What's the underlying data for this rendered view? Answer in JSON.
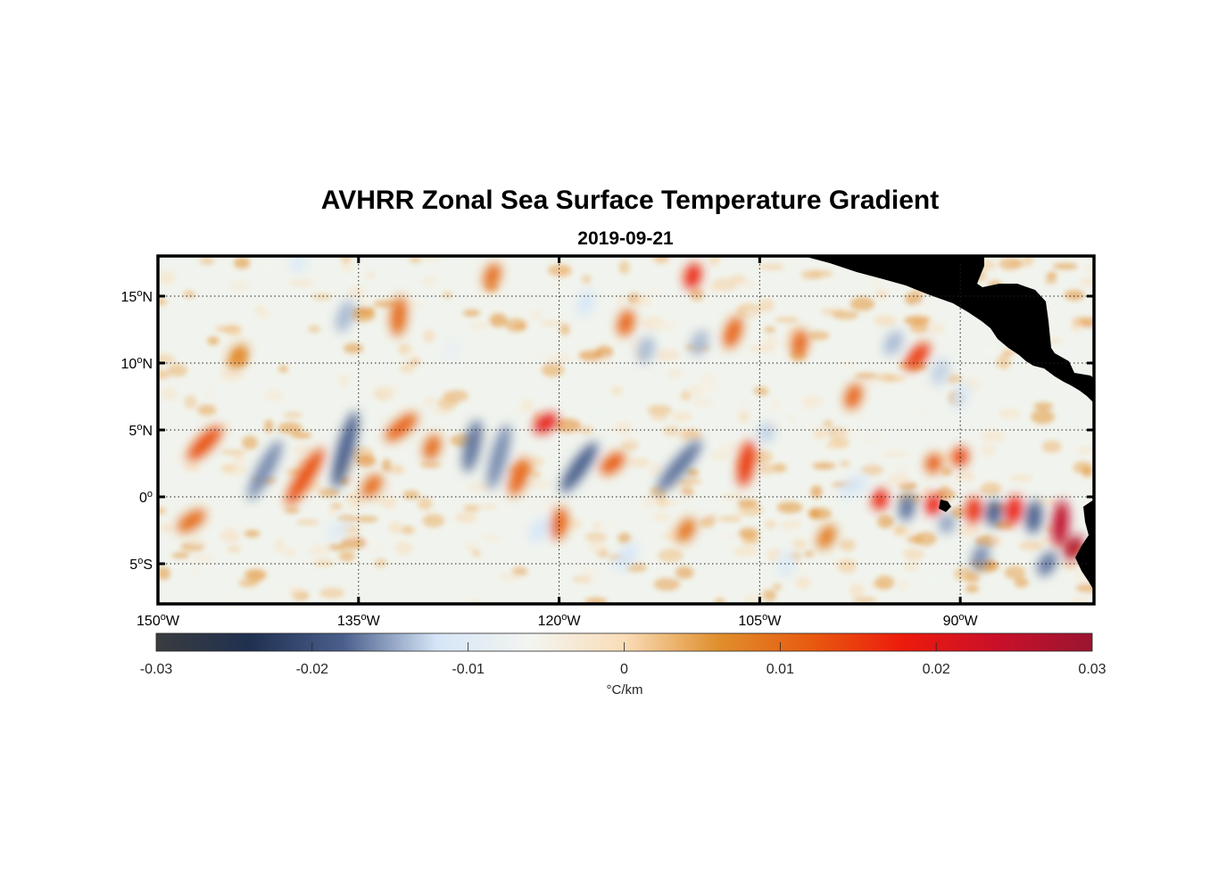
{
  "figure": {
    "title": "AVHRR Zonal Sea Surface Temperature Gradient",
    "date": "2019-09-21"
  },
  "map": {
    "lon_range": [
      -150,
      -80
    ],
    "lat_range": [
      -8,
      18
    ],
    "grid": "dotted",
    "land_color": "#808080",
    "lon_ticks": [
      {
        "value": -150,
        "label": "150",
        "suffix": "W"
      },
      {
        "value": -135,
        "label": "135",
        "suffix": "W"
      },
      {
        "value": -120,
        "label": "120",
        "suffix": "W"
      },
      {
        "value": -105,
        "label": "105",
        "suffix": "W"
      },
      {
        "value": -90,
        "label": "90",
        "suffix": "W"
      }
    ],
    "lat_ticks": [
      {
        "value": 15,
        "label": "15",
        "suffix": "N"
      },
      {
        "value": 10,
        "label": "10",
        "suffix": "N"
      },
      {
        "value": 5,
        "label": "5",
        "suffix": "N"
      },
      {
        "value": 0,
        "label": "0",
        "suffix": ""
      },
      {
        "value": -5,
        "label": "5",
        "suffix": "S"
      }
    ]
  },
  "colorbar": {
    "label": "°C/km",
    "range": [
      -0.03,
      0.03
    ],
    "ticks": [
      "-0.03",
      "-0.02",
      "-0.01",
      "0",
      "0.01",
      "0.02",
      "0.03"
    ],
    "colors": [
      "#3a3c3f",
      "#1f3050",
      "#4a5f8c",
      "#d6e6f7",
      "#f3f5f0",
      "#f9ddb8",
      "#e08f2d",
      "#e85a10",
      "#ec1a0c",
      "#c8102a",
      "#9a1530"
    ]
  },
  "features": [
    {
      "lon": -146.5,
      "lat": 4.0,
      "len": 3.5,
      "ang": 45,
      "value": 0.013
    },
    {
      "lon": -142.0,
      "lat": 2.0,
      "len": 5.0,
      "ang": 62,
      "value": -0.016
    },
    {
      "lon": -139.0,
      "lat": 1.5,
      "len": 5.0,
      "ang": 58,
      "value": 0.013
    },
    {
      "lon": -136.0,
      "lat": 3.5,
      "len": 6.0,
      "ang": 75,
      "value": -0.018
    },
    {
      "lon": -134.0,
      "lat": 0.8,
      "len": 2.0,
      "ang": 50,
      "value": 0.01
    },
    {
      "lon": -131.8,
      "lat": 5.2,
      "len": 3.0,
      "ang": 40,
      "value": 0.011
    },
    {
      "lon": -129.5,
      "lat": 3.7,
      "len": 2.0,
      "ang": 70,
      "value": 0.01
    },
    {
      "lon": -126.5,
      "lat": 3.8,
      "len": 4.0,
      "ang": 78,
      "value": -0.017
    },
    {
      "lon": -124.5,
      "lat": 3.0,
      "len": 5.0,
      "ang": 75,
      "value": -0.016
    },
    {
      "lon": -123.0,
      "lat": 1.5,
      "len": 3.0,
      "ang": 70,
      "value": 0.011
    },
    {
      "lon": -121.0,
      "lat": 5.5,
      "len": 2.0,
      "ang": 35,
      "value": 0.019
    },
    {
      "lon": -118.5,
      "lat": 2.2,
      "len": 4.5,
      "ang": 55,
      "value": -0.018
    },
    {
      "lon": -116.0,
      "lat": 2.5,
      "len": 2.2,
      "ang": 40,
      "value": 0.012
    },
    {
      "lon": -111.0,
      "lat": 2.3,
      "len": 5.0,
      "ang": 50,
      "value": -0.017
    },
    {
      "lon": -106.0,
      "lat": 2.5,
      "len": 3.5,
      "ang": 80,
      "value": 0.015
    },
    {
      "lon": -132.0,
      "lat": 13.5,
      "len": 3.0,
      "ang": 85,
      "value": 0.01
    },
    {
      "lon": -136.0,
      "lat": 13.5,
      "len": 2.5,
      "ang": 70,
      "value": -0.014
    },
    {
      "lon": -110.0,
      "lat": 16.5,
      "len": 2.0,
      "ang": 75,
      "value": 0.017
    },
    {
      "lon": -107.0,
      "lat": 12.3,
      "len": 2.5,
      "ang": 70,
      "value": 0.011
    },
    {
      "lon": -109.5,
      "lat": 11.5,
      "len": 2.0,
      "ang": 70,
      "value": -0.014
    },
    {
      "lon": -95.0,
      "lat": 11.5,
      "len": 2.0,
      "ang": 60,
      "value": -0.014
    },
    {
      "lon": -93.2,
      "lat": 10.5,
      "len": 2.5,
      "ang": 50,
      "value": 0.015
    },
    {
      "lon": -91.5,
      "lat": 9.3,
      "len": 2.0,
      "ang": 70,
      "value": -0.013
    },
    {
      "lon": -102.0,
      "lat": 11.5,
      "len": 2.0,
      "ang": 80,
      "value": 0.011
    },
    {
      "lon": -96.0,
      "lat": -0.2,
      "len": 1.6,
      "ang": 80,
      "value": 0.017
    },
    {
      "lon": -92.0,
      "lat": -0.6,
      "len": 1.6,
      "ang": 80,
      "value": 0.018
    },
    {
      "lon": -89.0,
      "lat": -1.0,
      "len": 2.0,
      "ang": 85,
      "value": 0.016
    },
    {
      "lon": -86.0,
      "lat": -1.0,
      "len": 2.2,
      "ang": 80,
      "value": 0.018
    },
    {
      "lon": -82.5,
      "lat": -2.0,
      "len": 3.5,
      "ang": 85,
      "value": 0.025
    },
    {
      "lon": -81.5,
      "lat": -3.8,
      "len": 2.0,
      "ang": 60,
      "value": 0.027
    },
    {
      "lon": -94.0,
      "lat": -0.8,
      "len": 2.0,
      "ang": 80,
      "value": -0.017
    },
    {
      "lon": -87.5,
      "lat": -1.2,
      "len": 2.0,
      "ang": 85,
      "value": -0.018
    },
    {
      "lon": -84.5,
      "lat": -1.5,
      "len": 2.5,
      "ang": 85,
      "value": -0.018
    },
    {
      "lon": -83.5,
      "lat": -5.0,
      "len": 2.0,
      "ang": 60,
      "value": -0.017
    },
    {
      "lon": -88.5,
      "lat": -4.5,
      "len": 2.0,
      "ang": 70,
      "value": -0.016
    },
    {
      "lon": -91.0,
      "lat": -2.0,
      "len": 1.5,
      "ang": 70,
      "value": -0.015
    },
    {
      "lon": -98.0,
      "lat": 0.8,
      "len": 2.5,
      "ang": 30,
      "value": -0.012
    },
    {
      "lon": -92.0,
      "lat": 2.5,
      "len": 1.5,
      "ang": 75,
      "value": 0.012
    },
    {
      "lon": -90.0,
      "lat": 3.0,
      "len": 1.5,
      "ang": 80,
      "value": 0.014
    },
    {
      "lon": -147.5,
      "lat": -1.8,
      "len": 2.5,
      "ang": 35,
      "value": 0.01
    },
    {
      "lon": -136.5,
      "lat": -2.5,
      "len": 2.0,
      "ang": 30,
      "value": -0.01
    },
    {
      "lon": -120.0,
      "lat": -2.0,
      "len": 2.5,
      "ang": 80,
      "value": 0.011
    },
    {
      "lon": -121.5,
      "lat": -2.5,
      "len": 2.0,
      "ang": 60,
      "value": -0.012
    },
    {
      "lon": -115.0,
      "lat": -4.5,
      "len": 2.5,
      "ang": 50,
      "value": -0.012
    },
    {
      "lon": -103.0,
      "lat": -5.0,
      "len": 2.0,
      "ang": 70,
      "value": -0.011
    },
    {
      "lon": -139.5,
      "lat": 17.5,
      "len": 1.5,
      "ang": 80,
      "value": -0.011
    },
    {
      "lon": -125.0,
      "lat": 16.5,
      "len": 2.0,
      "ang": 70,
      "value": 0.01
    },
    {
      "lon": -118.0,
      "lat": 14.5,
      "len": 2.0,
      "ang": 70,
      "value": -0.012
    },
    {
      "lon": -115.0,
      "lat": 13.0,
      "len": 2.0,
      "ang": 75,
      "value": 0.011
    },
    {
      "lon": -113.5,
      "lat": 11.0,
      "len": 2.0,
      "ang": 75,
      "value": -0.014
    },
    {
      "lon": -98.0,
      "lat": 7.5,
      "len": 2.0,
      "ang": 70,
      "value": 0.011
    },
    {
      "lon": -90.0,
      "lat": 7.5,
      "len": 2.0,
      "ang": 70,
      "value": -0.012
    },
    {
      "lon": -104.5,
      "lat": 4.8,
      "len": 1.5,
      "ang": 80,
      "value": -0.013
    },
    {
      "lon": -144.0,
      "lat": 10.5,
      "len": 2.0,
      "ang": 60,
      "value": 0.007
    },
    {
      "lon": -128.0,
      "lat": 11.0,
      "len": 2.0,
      "ang": 60,
      "value": -0.008
    },
    {
      "lon": -110.5,
      "lat": -2.5,
      "len": 2.0,
      "ang": 60,
      "value": 0.009
    },
    {
      "lon": -100.0,
      "lat": -3.0,
      "len": 2.0,
      "ang": 60,
      "value": 0.008
    }
  ]
}
